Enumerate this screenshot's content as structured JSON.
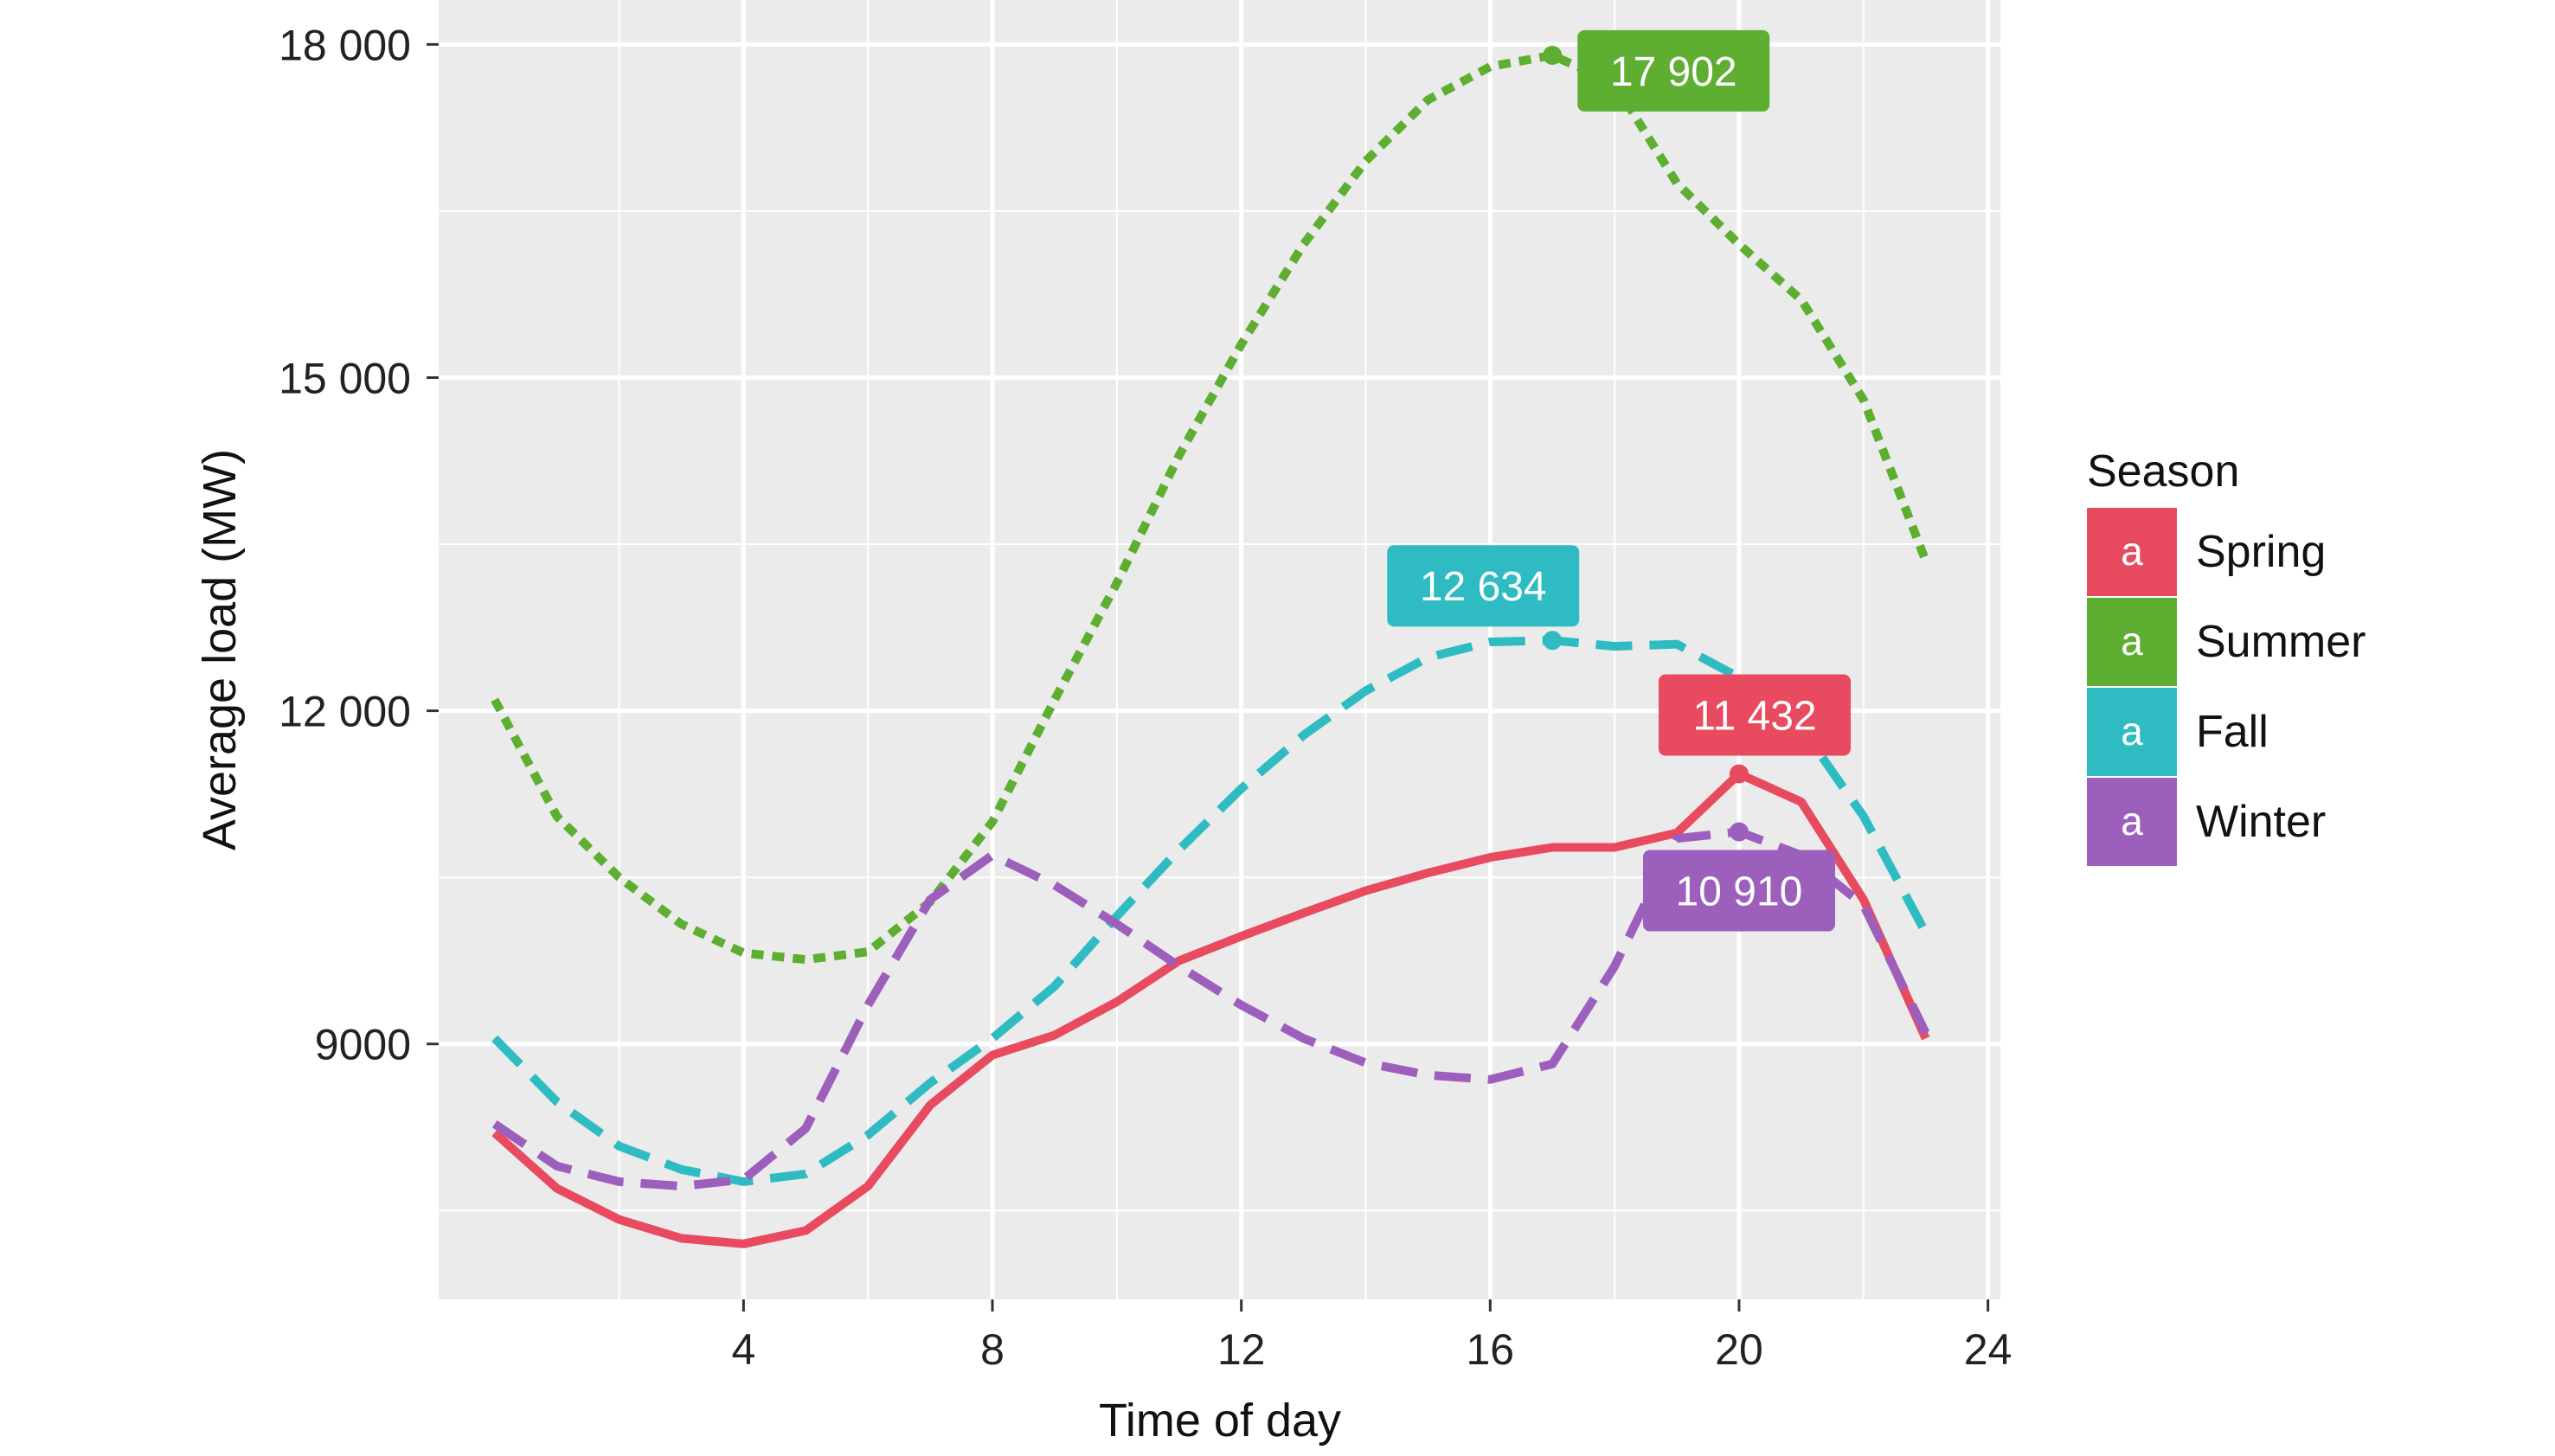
{
  "chart_data": {
    "type": "line",
    "title": "",
    "xlabel": "Time of day",
    "ylabel": "Average load (MW)",
    "xlim": [
      -0.9,
      24.2
    ],
    "ylim": [
      6700,
      18400
    ],
    "x_ticks": [
      4,
      8,
      12,
      16,
      20,
      24
    ],
    "x_tick_labels": [
      "4",
      "8",
      "12",
      "16",
      "20",
      "24"
    ],
    "y_ticks": [
      9000,
      12000,
      15000,
      18000
    ],
    "y_tick_labels": [
      "9000",
      "12 000",
      "15 000",
      "18 000"
    ],
    "grid": true,
    "legend_title": "Season",
    "legend_glyph": "a",
    "legend_position": "right",
    "x": [
      0,
      1,
      2,
      3,
      4,
      5,
      6,
      7,
      8,
      9,
      10,
      11,
      12,
      13,
      14,
      15,
      16,
      17,
      18,
      19,
      20,
      21,
      22,
      23
    ],
    "series": [
      {
        "name": "Spring",
        "color": "#E84A5F",
        "linestyle": "solid",
        "values": [
          8200,
          7700,
          7420,
          7250,
          7200,
          7320,
          7720,
          8450,
          8900,
          9080,
          9380,
          9750,
          9970,
          10180,
          10380,
          10540,
          10680,
          10770,
          10770,
          10900,
          11432,
          11180,
          10300,
          9050
        ],
        "peak": {
          "x": 20,
          "y": 11432,
          "label": "11 432"
        }
      },
      {
        "name": "Summer",
        "color": "#5DAE31",
        "linestyle": "dotted",
        "values": [
          12100,
          11050,
          10500,
          10080,
          9820,
          9760,
          9830,
          10280,
          11000,
          12100,
          13150,
          14300,
          15300,
          16200,
          16950,
          17500,
          17800,
          17902,
          17650,
          16750,
          16200,
          15700,
          14800,
          13350
        ],
        "peak": {
          "x": 17,
          "y": 17902,
          "label": "17 902"
        }
      },
      {
        "name": "Fall",
        "color": "#2EBCC2",
        "linestyle": "dashed",
        "values": [
          9050,
          8480,
          8080,
          7870,
          7760,
          7830,
          8180,
          8650,
          9050,
          9520,
          10150,
          10750,
          11300,
          11780,
          12180,
          12480,
          12620,
          12634,
          12580,
          12600,
          12300,
          11850,
          11050,
          10000
        ],
        "peak": {
          "x": 17,
          "y": 12634,
          "label": "12 634"
        }
      },
      {
        "name": "Winter",
        "color": "#9D5FBC",
        "linestyle": "dashed",
        "values": [
          8280,
          7900,
          7760,
          7720,
          7780,
          8240,
          9350,
          10300,
          10700,
          10430,
          10080,
          9700,
          9350,
          9050,
          8830,
          8720,
          8680,
          8820,
          9700,
          10850,
          10910,
          10700,
          10250,
          9100
        ],
        "peak": {
          "x": 20,
          "y": 10910,
          "label": "10 910"
        }
      }
    ]
  }
}
